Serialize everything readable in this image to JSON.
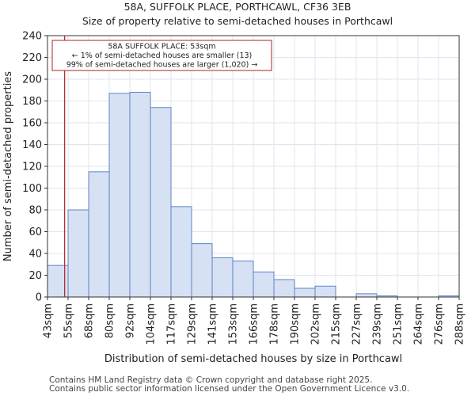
{
  "chart_data": {
    "type": "bar",
    "title": "58A, SUFFOLK PLACE, PORTHCAWL, CF36 3EB",
    "subtitle": "Size of property relative to semi-detached houses in Porthcawl",
    "xlabel": "Distribution of semi-detached houses by size in Porthcawl",
    "ylabel": "Number of semi-detached properties",
    "ylim": [
      0,
      240
    ],
    "yticks": [
      0,
      20,
      40,
      60,
      80,
      100,
      120,
      140,
      160,
      180,
      200,
      220,
      240
    ],
    "bin_edges": [
      43,
      55,
      68,
      80,
      92,
      104,
      117,
      129,
      141,
      153,
      166,
      178,
      190,
      202,
      215,
      227,
      239,
      251,
      264,
      276,
      288
    ],
    "tick_labels": [
      "43sqm",
      "55sqm",
      "68sqm",
      "80sqm",
      "92sqm",
      "104sqm",
      "117sqm",
      "129sqm",
      "141sqm",
      "153sqm",
      "166sqm",
      "178sqm",
      "190sqm",
      "202sqm",
      "215sqm",
      "227sqm",
      "239sqm",
      "251sqm",
      "264sqm",
      "276sqm",
      "288sqm"
    ],
    "values": [
      29,
      80,
      115,
      187,
      188,
      174,
      83,
      49,
      36,
      33,
      23,
      16,
      8,
      10,
      0,
      3,
      1,
      0,
      0,
      1
    ],
    "marker": {
      "value": 53,
      "color": "#b22222"
    },
    "annotation": {
      "lines": [
        "58A SUFFOLK PLACE: 53sqm",
        "← 1% of semi-detached houses are smaller (13)",
        "99% of semi-detached houses are larger (1,020) →"
      ]
    },
    "bar_fill": "#d7e1f4",
    "bar_stroke": "#5b84c4",
    "grid_color": "#dfe5ef"
  },
  "footer": {
    "line1": "Contains HM Land Registry data © Crown copyright and database right 2025.",
    "line2": "Contains public sector information licensed under the Open Government Licence v3.0."
  }
}
